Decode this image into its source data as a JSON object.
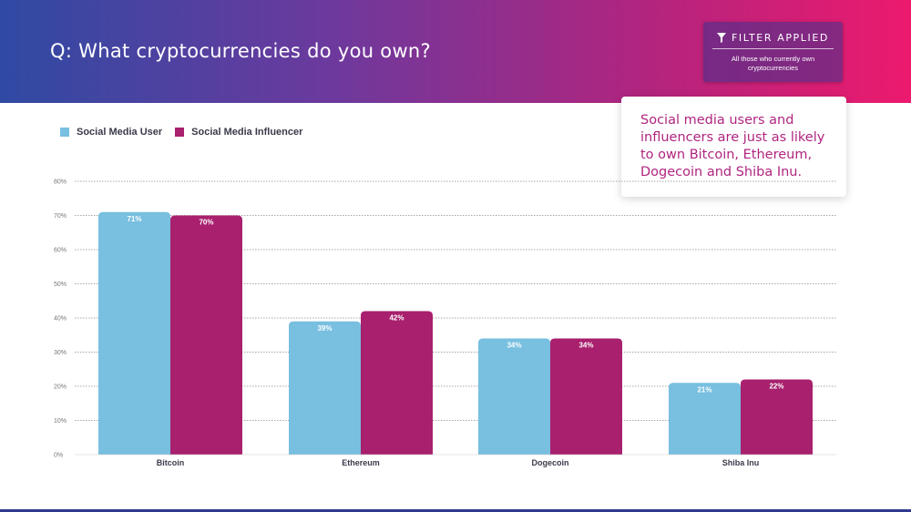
{
  "header": {
    "question": "Q: What cryptocurrencies do you own?",
    "filter": {
      "title": "FILTER APPLIED",
      "icon": "funnel-icon",
      "subtitle": "All those who currently own cryptocurrencies"
    }
  },
  "callout": {
    "text": "Social media users and influencers are just as likely to own Bitcoin, Ethereum, Dogecoin and Shiba Inu."
  },
  "colors": {
    "header_start": "#2f4aa3",
    "header_end": "#ec1a6e",
    "series_user": "#78bfe0",
    "series_influencer": "#a8206e",
    "callout_text": "#b0257f"
  },
  "chart_data": {
    "type": "bar",
    "categories": [
      "Bitcoin",
      "Ethereum",
      "Dogecoin",
      "Shiba Inu"
    ],
    "series": [
      {
        "name": "Social Media User",
        "values": [
          71,
          39,
          34,
          21
        ],
        "labels": [
          "71%",
          "39%",
          "34%",
          "21%"
        ],
        "color": "#78bfe0"
      },
      {
        "name": "Social Media Influencer",
        "values": [
          70,
          42,
          34,
          22
        ],
        "labels": [
          "70%",
          "42%",
          "34%",
          "22%"
        ],
        "color": "#a8206e"
      }
    ],
    "ylim": [
      0,
      80
    ],
    "yticks": [
      0,
      10,
      20,
      30,
      40,
      50,
      60,
      70,
      80
    ],
    "ytick_labels": [
      "0%",
      "10%",
      "20%",
      "30%",
      "40%",
      "50%",
      "60%",
      "70%",
      "80%"
    ],
    "grid": true,
    "legend": "top-left",
    "xlabel": "",
    "ylabel": ""
  }
}
